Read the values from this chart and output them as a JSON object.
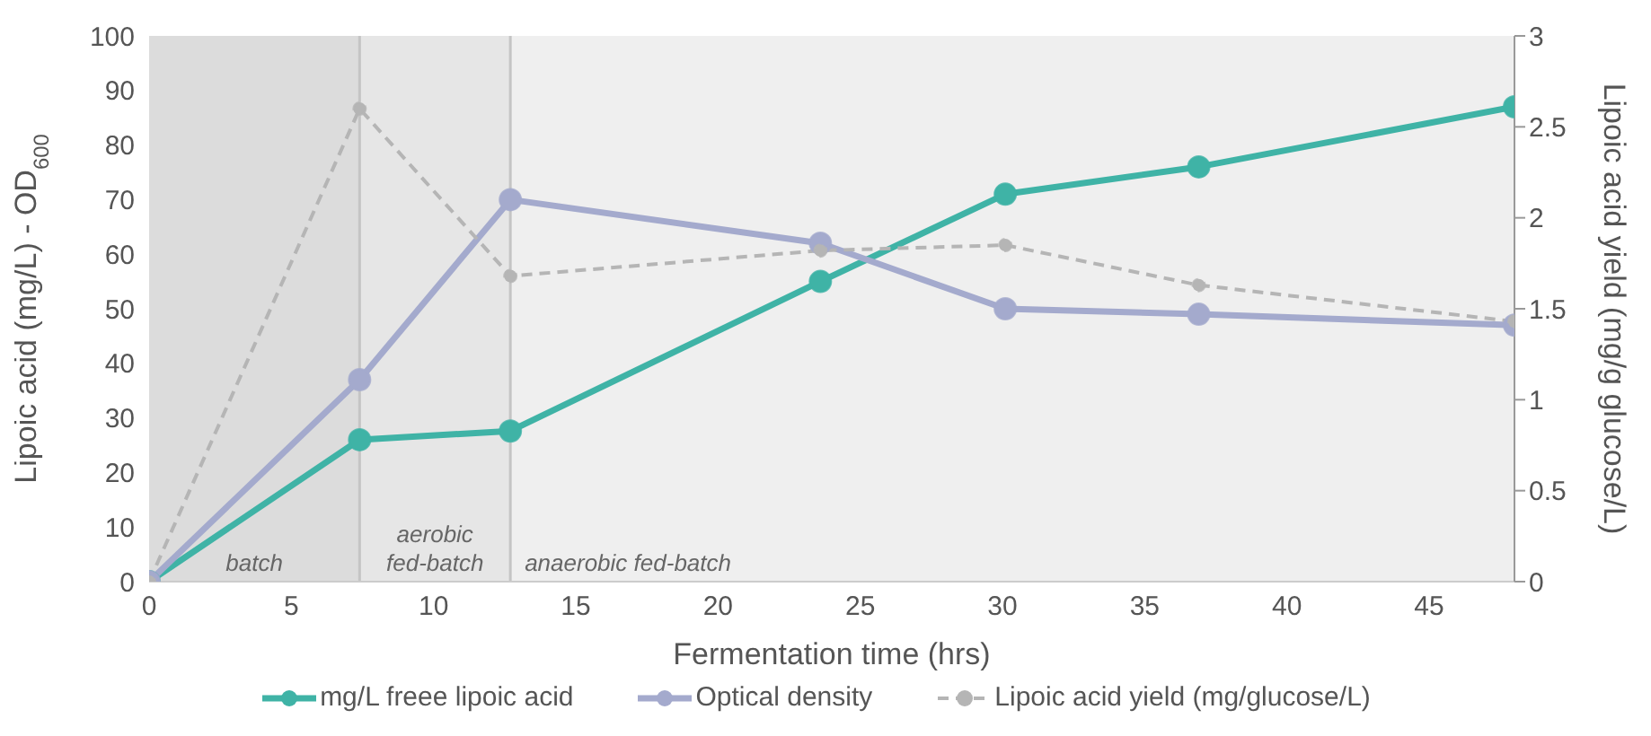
{
  "chart_data": {
    "type": "line",
    "xlabel": "Fermentation time (hrs)",
    "ylabel": "Lipoic acid (mg/L) - OD$_{600}$",
    "y2label": "Lipoic acid yield (mg/g glucose/L)",
    "x": [
      0,
      7.4,
      12.7,
      23.6,
      30.1,
      36.9,
      48
    ],
    "series": [
      {
        "name": "mg/L freee lipoic acid",
        "color": "#3fb3a6",
        "values": [
          0,
          26,
          27.6,
          55,
          71,
          76,
          87
        ],
        "line_style": "solid"
      },
      {
        "name": "Optical density",
        "color": "#a4aacd",
        "values": [
          0,
          37,
          70,
          62,
          50,
          49,
          47
        ],
        "line_style": "solid"
      },
      {
        "name": "Lipoic acid yield (mg/glucose/L)",
        "color": "#b5b5b5",
        "values": [
          0,
          2.6,
          1.68,
          1.82,
          1.85,
          1.63,
          1.43
        ],
        "axis": "y2",
        "line_style": "dashed"
      }
    ],
    "xlim": [
      0,
      48
    ],
    "xticks": [
      0,
      5,
      10,
      15,
      20,
      25,
      30,
      35,
      40,
      45
    ],
    "ylim": [
      0,
      100
    ],
    "yticks": [
      0,
      10,
      20,
      30,
      40,
      50,
      60,
      70,
      80,
      90,
      100
    ],
    "y2lim": [
      0,
      3
    ],
    "y2ticks": [
      0,
      0.5,
      1,
      1.5,
      2,
      2.5,
      3
    ],
    "bands": [
      {
        "axis": "x",
        "from": 0,
        "to": 7.4,
        "label": "batch",
        "color": "#dcdcdc"
      },
      {
        "axis": "x",
        "from": 7.4,
        "to": 12.7,
        "label": "aerobic fed-batch",
        "color": "#e6e6e6"
      },
      {
        "axis": "x",
        "from": 12.7,
        "to": 48,
        "label": "anaerobic fed-batch",
        "color": "#efefef"
      }
    ],
    "ref_lines": [
      {
        "axis": "x",
        "value": 7.4,
        "color": "#c4c4c4"
      },
      {
        "axis": "x",
        "value": 12.7,
        "color": "#c4c4c4"
      }
    ],
    "marker": "circle",
    "grid": false,
    "legend": "bottom"
  }
}
